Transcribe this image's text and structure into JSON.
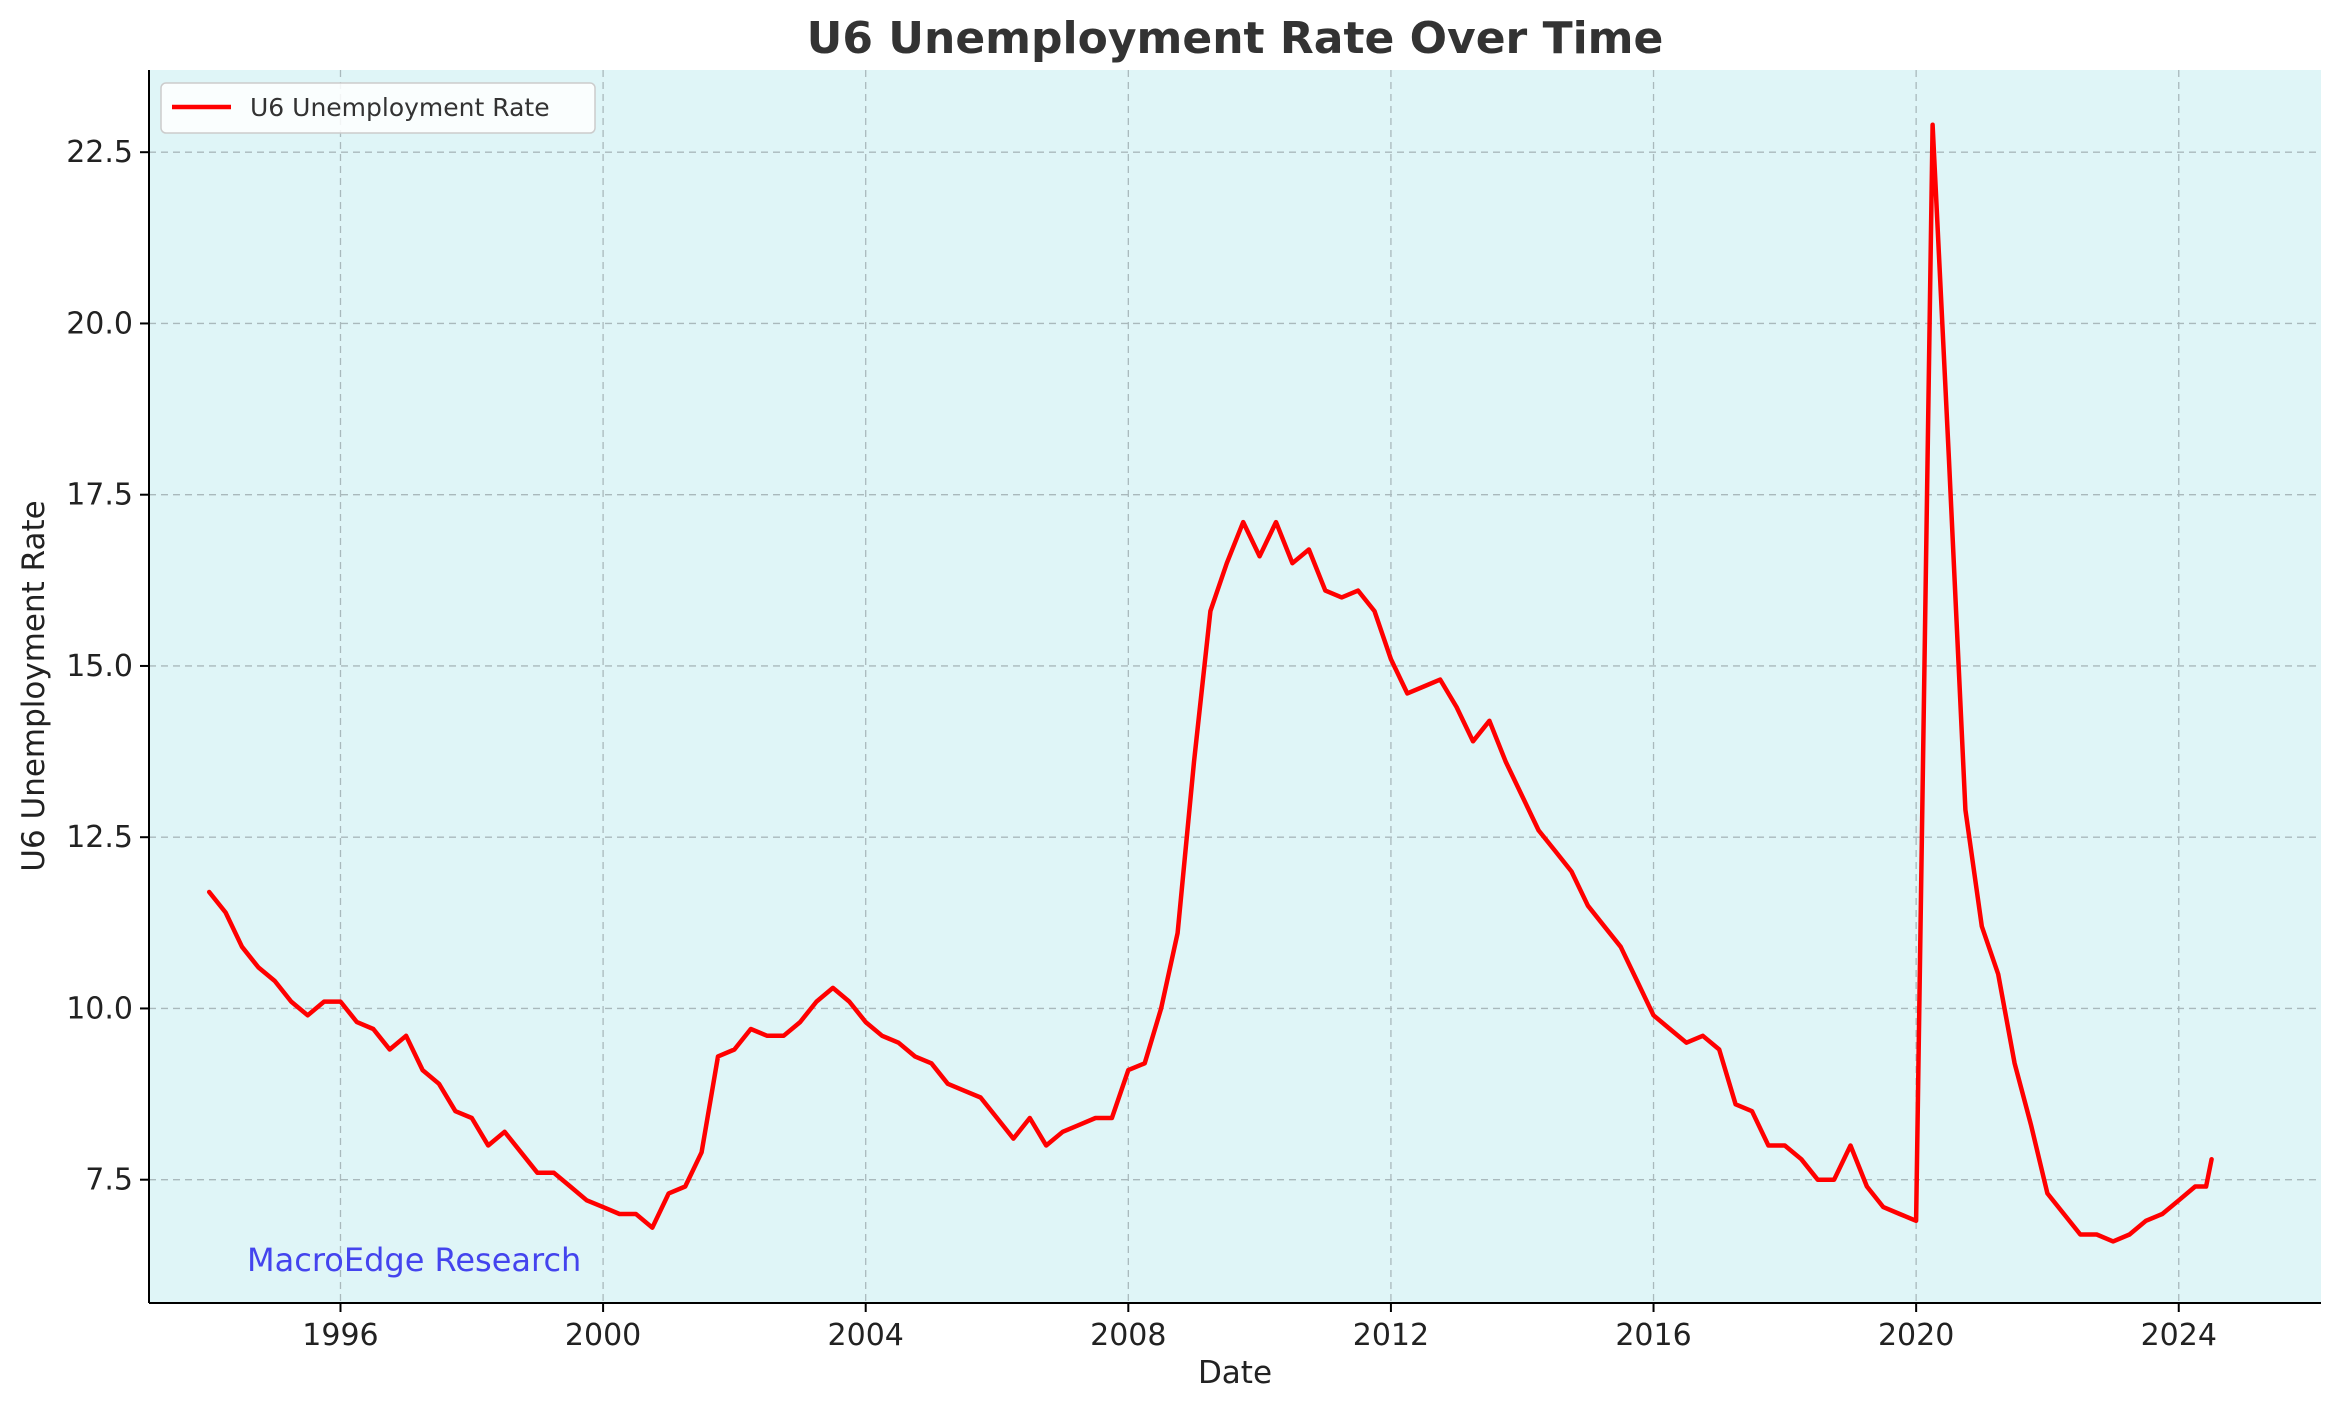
{
  "chart_data": {
    "type": "line",
    "title": "U6 Unemployment Rate Over Time",
    "xlabel": "Date",
    "ylabel": "U6 Unemployment Rate",
    "x_ticks": [
      "1996",
      "2000",
      "2004",
      "2008",
      "2012",
      "2016",
      "2020",
      "2024"
    ],
    "y_ticks": [
      "7.5",
      "10.0",
      "12.5",
      "15.0",
      "17.5",
      "20.0",
      "22.5"
    ],
    "xlim": [
      "1993-02",
      "2026-03"
    ],
    "ylim": [
      5.7,
      23.7
    ],
    "grid": true,
    "legend_position": "top-left",
    "background_color": "#dff5f7",
    "line_color": "#ff0000",
    "watermark": "MacroEdge Research",
    "watermark_color": "#4444ee",
    "series": [
      {
        "name": "U6 Unemployment Rate",
        "points": [
          [
            "1994-01",
            11.7
          ],
          [
            "1994-04",
            11.4
          ],
          [
            "1994-07",
            10.9
          ],
          [
            "1994-10",
            10.6
          ],
          [
            "1995-01",
            10.4
          ],
          [
            "1995-04",
            10.1
          ],
          [
            "1995-07",
            9.9
          ],
          [
            "1995-10",
            10.1
          ],
          [
            "1996-01",
            10.1
          ],
          [
            "1996-04",
            9.8
          ],
          [
            "1996-07",
            9.7
          ],
          [
            "1996-10",
            9.4
          ],
          [
            "1997-01",
            9.6
          ],
          [
            "1997-04",
            9.1
          ],
          [
            "1997-07",
            8.9
          ],
          [
            "1997-10",
            8.5
          ],
          [
            "1998-01",
            8.4
          ],
          [
            "1998-04",
            8.0
          ],
          [
            "1998-07",
            8.2
          ],
          [
            "1998-10",
            7.9
          ],
          [
            "1999-01",
            7.6
          ],
          [
            "1999-04",
            7.6
          ],
          [
            "1999-07",
            7.4
          ],
          [
            "1999-10",
            7.2
          ],
          [
            "2000-01",
            7.1
          ],
          [
            "2000-04",
            7.0
          ],
          [
            "2000-07",
            7.0
          ],
          [
            "2000-10",
            6.8
          ],
          [
            "2001-01",
            7.3
          ],
          [
            "2001-04",
            7.4
          ],
          [
            "2001-07",
            7.9
          ],
          [
            "2001-10",
            9.3
          ],
          [
            "2002-01",
            9.4
          ],
          [
            "2002-04",
            9.7
          ],
          [
            "2002-07",
            9.6
          ],
          [
            "2002-10",
            9.6
          ],
          [
            "2003-01",
            9.8
          ],
          [
            "2003-04",
            10.1
          ],
          [
            "2003-07",
            10.3
          ],
          [
            "2003-10",
            10.1
          ],
          [
            "2004-01",
            9.8
          ],
          [
            "2004-04",
            9.6
          ],
          [
            "2004-07",
            9.5
          ],
          [
            "2004-10",
            9.3
          ],
          [
            "2005-01",
            9.2
          ],
          [
            "2005-04",
            8.9
          ],
          [
            "2005-07",
            8.8
          ],
          [
            "2005-10",
            8.7
          ],
          [
            "2006-01",
            8.4
          ],
          [
            "2006-04",
            8.1
          ],
          [
            "2006-07",
            8.4
          ],
          [
            "2006-10",
            8.0
          ],
          [
            "2007-01",
            8.2
          ],
          [
            "2007-04",
            8.3
          ],
          [
            "2007-07",
            8.4
          ],
          [
            "2007-10",
            8.4
          ],
          [
            "2008-01",
            9.1
          ],
          [
            "2008-04",
            9.2
          ],
          [
            "2008-07",
            10.0
          ],
          [
            "2008-10",
            11.1
          ],
          [
            "2009-01",
            13.6
          ],
          [
            "2009-04",
            15.8
          ],
          [
            "2009-07",
            16.5
          ],
          [
            "2009-10",
            17.1
          ],
          [
            "2010-01",
            16.6
          ],
          [
            "2010-04",
            17.1
          ],
          [
            "2010-07",
            16.5
          ],
          [
            "2010-10",
            16.7
          ],
          [
            "2011-01",
            16.1
          ],
          [
            "2011-04",
            16.0
          ],
          [
            "2011-07",
            16.1
          ],
          [
            "2011-10",
            15.8
          ],
          [
            "2012-01",
            15.1
          ],
          [
            "2012-04",
            14.6
          ],
          [
            "2012-07",
            14.7
          ],
          [
            "2012-10",
            14.8
          ],
          [
            "2013-01",
            14.4
          ],
          [
            "2013-04",
            13.9
          ],
          [
            "2013-07",
            14.2
          ],
          [
            "2013-10",
            13.6
          ],
          [
            "2014-01",
            13.1
          ],
          [
            "2014-04",
            12.6
          ],
          [
            "2014-07",
            12.3
          ],
          [
            "2014-10",
            12.0
          ],
          [
            "2015-01",
            11.5
          ],
          [
            "2015-04",
            11.2
          ],
          [
            "2015-07",
            10.9
          ],
          [
            "2015-10",
            10.4
          ],
          [
            "2016-01",
            9.9
          ],
          [
            "2016-04",
            9.7
          ],
          [
            "2016-07",
            9.5
          ],
          [
            "2016-10",
            9.6
          ],
          [
            "2017-01",
            9.4
          ],
          [
            "2017-04",
            8.6
          ],
          [
            "2017-07",
            8.5
          ],
          [
            "2017-10",
            8.0
          ],
          [
            "2018-01",
            8.0
          ],
          [
            "2018-04",
            7.8
          ],
          [
            "2018-07",
            7.5
          ],
          [
            "2018-10",
            7.5
          ],
          [
            "2019-01",
            8.0
          ],
          [
            "2019-04",
            7.4
          ],
          [
            "2019-07",
            7.1
          ],
          [
            "2019-10",
            7.0
          ],
          [
            "2020-01",
            6.9
          ],
          [
            "2020-04",
            22.9
          ],
          [
            "2020-07",
            18.0
          ],
          [
            "2020-10",
            12.9
          ],
          [
            "2021-01",
            11.2
          ],
          [
            "2021-04",
            10.5
          ],
          [
            "2021-07",
            9.2
          ],
          [
            "2021-10",
            8.3
          ],
          [
            "2022-01",
            7.3
          ],
          [
            "2022-04",
            7.0
          ],
          [
            "2022-07",
            6.7
          ],
          [
            "2022-10",
            6.7
          ],
          [
            "2023-01",
            6.6
          ],
          [
            "2023-04",
            6.7
          ],
          [
            "2023-07",
            6.9
          ],
          [
            "2023-10",
            7.0
          ],
          [
            "2024-01",
            7.2
          ],
          [
            "2024-04",
            7.4
          ],
          [
            "2024-06",
            7.4
          ],
          [
            "2024-07",
            7.8
          ]
        ]
      }
    ]
  }
}
